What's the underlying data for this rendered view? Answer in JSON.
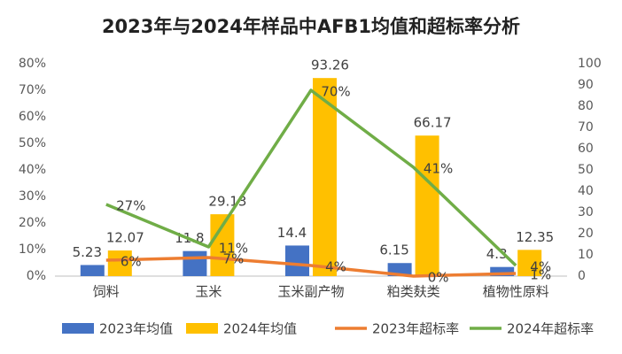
{
  "chart_data": {
    "type": "bar",
    "title": "2023年与2024年样品中AFB1均值和超标率分析",
    "categories": [
      "饲料",
      "玉米",
      "玉米副产物",
      "粕类麸类",
      "植物性原料"
    ],
    "series": [
      {
        "name": "2023年均值",
        "type": "bar",
        "axis": "y2",
        "color": "#4472c4",
        "values": [
          5.23,
          11.8,
          14.4,
          6.15,
          4.3
        ]
      },
      {
        "name": "2024年均值",
        "type": "bar",
        "axis": "y2",
        "color": "#ffc000",
        "values": [
          12.07,
          29.13,
          93.26,
          66.17,
          12.35
        ]
      },
      {
        "name": "2023年超标率",
        "type": "line",
        "color": "#ed7d31",
        "values": [
          6,
          7,
          4,
          0,
          1
        ],
        "value_labels": [
          "6%",
          "7%",
          "4%",
          "0%",
          "1%"
        ]
      },
      {
        "name": "2024年超标率",
        "type": "line",
        "color": "#70ad47",
        "values": [
          27,
          11,
          70,
          41,
          4
        ],
        "value_labels": [
          "27%",
          "11%",
          "70%",
          "41%",
          "4%"
        ]
      }
    ],
    "ylim": [
      0,
      80
    ],
    "yticks": [
      {
        "value": 0,
        "label": "0%"
      },
      {
        "value": 10,
        "label": "10%"
      },
      {
        "value": 20,
        "label": "20%"
      },
      {
        "value": 30,
        "label": "30%"
      },
      {
        "value": 40,
        "label": "40%"
      },
      {
        "value": 50,
        "label": "50%"
      },
      {
        "value": 60,
        "label": "60%"
      },
      {
        "value": 70,
        "label": "70%"
      },
      {
        "value": 80,
        "label": "80%"
      }
    ],
    "y2lim": [
      0,
      100
    ],
    "y2ticks": [
      0,
      10,
      20,
      30,
      40,
      50,
      60,
      70,
      80,
      90,
      100
    ],
    "grid": false,
    "legend": "bottom"
  }
}
